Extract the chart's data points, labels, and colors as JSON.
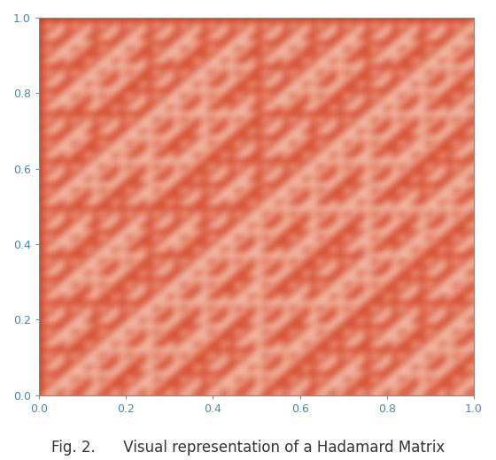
{
  "n": 128,
  "cmap_colors": [
    "#fde8d8",
    "#cc2200"
  ],
  "xlim": [
    0.0,
    1.0
  ],
  "ylim": [
    0.0,
    1.0
  ],
  "xticks": [
    0.0,
    0.2,
    0.4,
    0.6,
    0.8,
    1.0
  ],
  "yticks": [
    0.0,
    0.2,
    0.4,
    0.6,
    0.8,
    1.0
  ],
  "tick_color": "#4488bb",
  "tick_fontsize": 9,
  "figure_caption": "Fig. 2.      Visual representation of a Hadamard Matrix",
  "caption_fontsize": 12,
  "bg_color": "#ffffff",
  "spine_color": "#888888",
  "blur_sigma": 1.2
}
